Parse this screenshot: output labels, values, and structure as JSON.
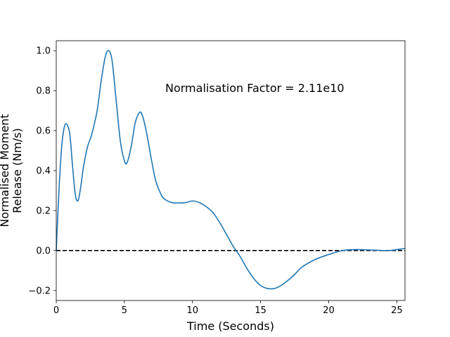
{
  "chart_data": {
    "type": "line",
    "title": "",
    "xlabel": "Time (Seconds)",
    "ylabel_lines": [
      "Normalised Moment",
      "Release (Nm/s)"
    ],
    "xlim": [
      0,
      25.6
    ],
    "ylim": [
      -0.25,
      1.05
    ],
    "xticks": [
      0,
      5,
      10,
      15,
      20,
      25
    ],
    "yticks": [
      -0.2,
      0.0,
      0.2,
      0.4,
      0.6,
      0.8,
      1.0
    ],
    "ytick_labels": [
      "−0.2",
      "0.0",
      "0.2",
      "0.4",
      "0.6",
      "0.8",
      "1.0"
    ],
    "annotation": "Normalisation Factor = 2.11e10",
    "reference_line": {
      "y": 0.0,
      "style": "dashed",
      "color": "#000000"
    },
    "grid": false,
    "series": [
      {
        "color": "#1f77b4",
        "x": [
          0,
          0.2,
          0.4,
          0.6,
          0.8,
          1.0,
          1.2,
          1.4,
          1.6,
          1.8,
          2.0,
          2.3,
          2.6,
          3.0,
          3.3,
          3.6,
          3.85,
          4.1,
          4.4,
          4.7,
          5.0,
          5.2,
          5.5,
          5.8,
          6.1,
          6.3,
          6.6,
          7.0,
          7.3,
          7.7,
          8.0,
          8.5,
          9.0,
          9.5,
          10.0,
          10.5,
          11.0,
          11.5,
          12.0,
          12.5,
          13.0,
          13.5,
          14.0,
          14.5,
          15.0,
          15.5,
          16.0,
          16.5,
          17.0,
          17.5,
          18.0,
          19.0,
          20.0,
          21.0,
          22.0,
          23.0,
          24.0,
          24.5,
          25.0,
          25.6
        ],
        "y": [
          0.0,
          0.3,
          0.52,
          0.62,
          0.63,
          0.58,
          0.42,
          0.28,
          0.25,
          0.32,
          0.42,
          0.52,
          0.58,
          0.7,
          0.85,
          0.97,
          1.0,
          0.95,
          0.75,
          0.55,
          0.45,
          0.44,
          0.52,
          0.64,
          0.69,
          0.68,
          0.6,
          0.45,
          0.35,
          0.28,
          0.255,
          0.24,
          0.238,
          0.24,
          0.248,
          0.24,
          0.22,
          0.19,
          0.14,
          0.08,
          0.02,
          -0.03,
          -0.09,
          -0.14,
          -0.175,
          -0.19,
          -0.19,
          -0.175,
          -0.15,
          -0.12,
          -0.085,
          -0.045,
          -0.02,
          0.0,
          0.005,
          0.003,
          0.0,
          0.0,
          0.005,
          0.01
        ]
      }
    ]
  }
}
